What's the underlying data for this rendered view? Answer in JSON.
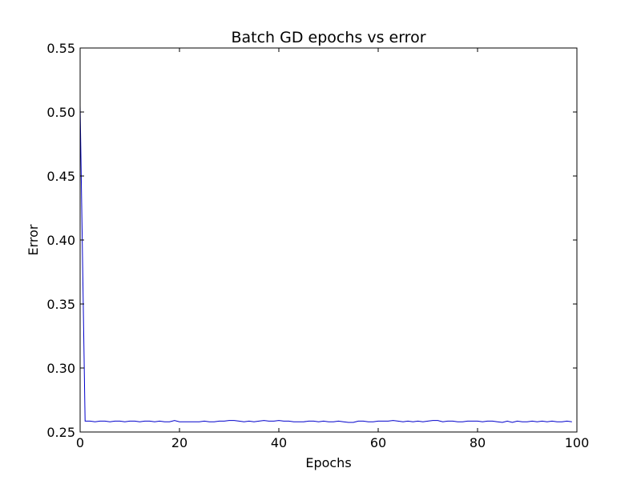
{
  "chart_data": {
    "type": "line",
    "title": "Batch GD epochs vs error",
    "xlabel": "Epochs",
    "ylabel": "Error",
    "xlim": [
      0,
      100
    ],
    "ylim": [
      0.25,
      0.55
    ],
    "xticks": [
      0,
      20,
      40,
      60,
      80,
      100
    ],
    "xtick_labels": [
      "0",
      "20",
      "40",
      "60",
      "80",
      "100"
    ],
    "yticks": [
      0.25,
      0.3,
      0.35,
      0.4,
      0.45,
      0.5,
      0.55
    ],
    "ytick_labels": [
      "0.25",
      "0.30",
      "0.35",
      "0.40",
      "0.45",
      "0.50",
      "0.55"
    ],
    "grid": false,
    "series": [
      {
        "color": "#0000cc",
        "x": [
          0,
          1,
          2,
          3,
          4,
          5,
          6,
          7,
          8,
          9,
          10,
          11,
          12,
          13,
          14,
          15,
          16,
          17,
          18,
          19,
          20,
          21,
          22,
          23,
          24,
          25,
          26,
          27,
          28,
          29,
          30,
          31,
          32,
          33,
          34,
          35,
          36,
          37,
          38,
          39,
          40,
          41,
          42,
          43,
          44,
          45,
          46,
          47,
          48,
          49,
          50,
          51,
          52,
          53,
          54,
          55,
          56,
          57,
          58,
          59,
          60,
          61,
          62,
          63,
          64,
          65,
          66,
          67,
          68,
          69,
          70,
          71,
          72,
          73,
          74,
          75,
          76,
          77,
          78,
          79,
          80,
          81,
          82,
          83,
          84,
          85,
          86,
          87,
          88,
          89,
          90,
          91,
          92,
          93,
          94,
          95,
          96,
          97,
          98,
          99
        ],
        "y": [
          0.505,
          0.2585,
          0.2585,
          0.258,
          0.2585,
          0.2585,
          0.258,
          0.2585,
          0.2585,
          0.258,
          0.2585,
          0.2585,
          0.258,
          0.2585,
          0.2585,
          0.258,
          0.2585,
          0.258,
          0.258,
          0.259,
          0.258,
          0.258,
          0.258,
          0.258,
          0.258,
          0.2585,
          0.258,
          0.258,
          0.2585,
          0.2585,
          0.259,
          0.259,
          0.2585,
          0.258,
          0.2585,
          0.258,
          0.2585,
          0.259,
          0.2585,
          0.2585,
          0.259,
          0.2585,
          0.2585,
          0.258,
          0.258,
          0.258,
          0.2585,
          0.2585,
          0.258,
          0.2585,
          0.258,
          0.258,
          0.2585,
          0.258,
          0.2575,
          0.2575,
          0.2585,
          0.2585,
          0.258,
          0.258,
          0.2585,
          0.2585,
          0.2585,
          0.259,
          0.2585,
          0.258,
          0.2585,
          0.258,
          0.2585,
          0.258,
          0.2585,
          0.259,
          0.259,
          0.258,
          0.2585,
          0.2585,
          0.258,
          0.258,
          0.2585,
          0.2585,
          0.2585,
          0.258,
          0.2585,
          0.2585,
          0.258,
          0.2575,
          0.2585,
          0.2575,
          0.2585,
          0.258,
          0.258,
          0.2585,
          0.258,
          0.2585,
          0.258,
          0.2585,
          0.258,
          0.258,
          0.2585,
          0.258
        ]
      }
    ]
  }
}
